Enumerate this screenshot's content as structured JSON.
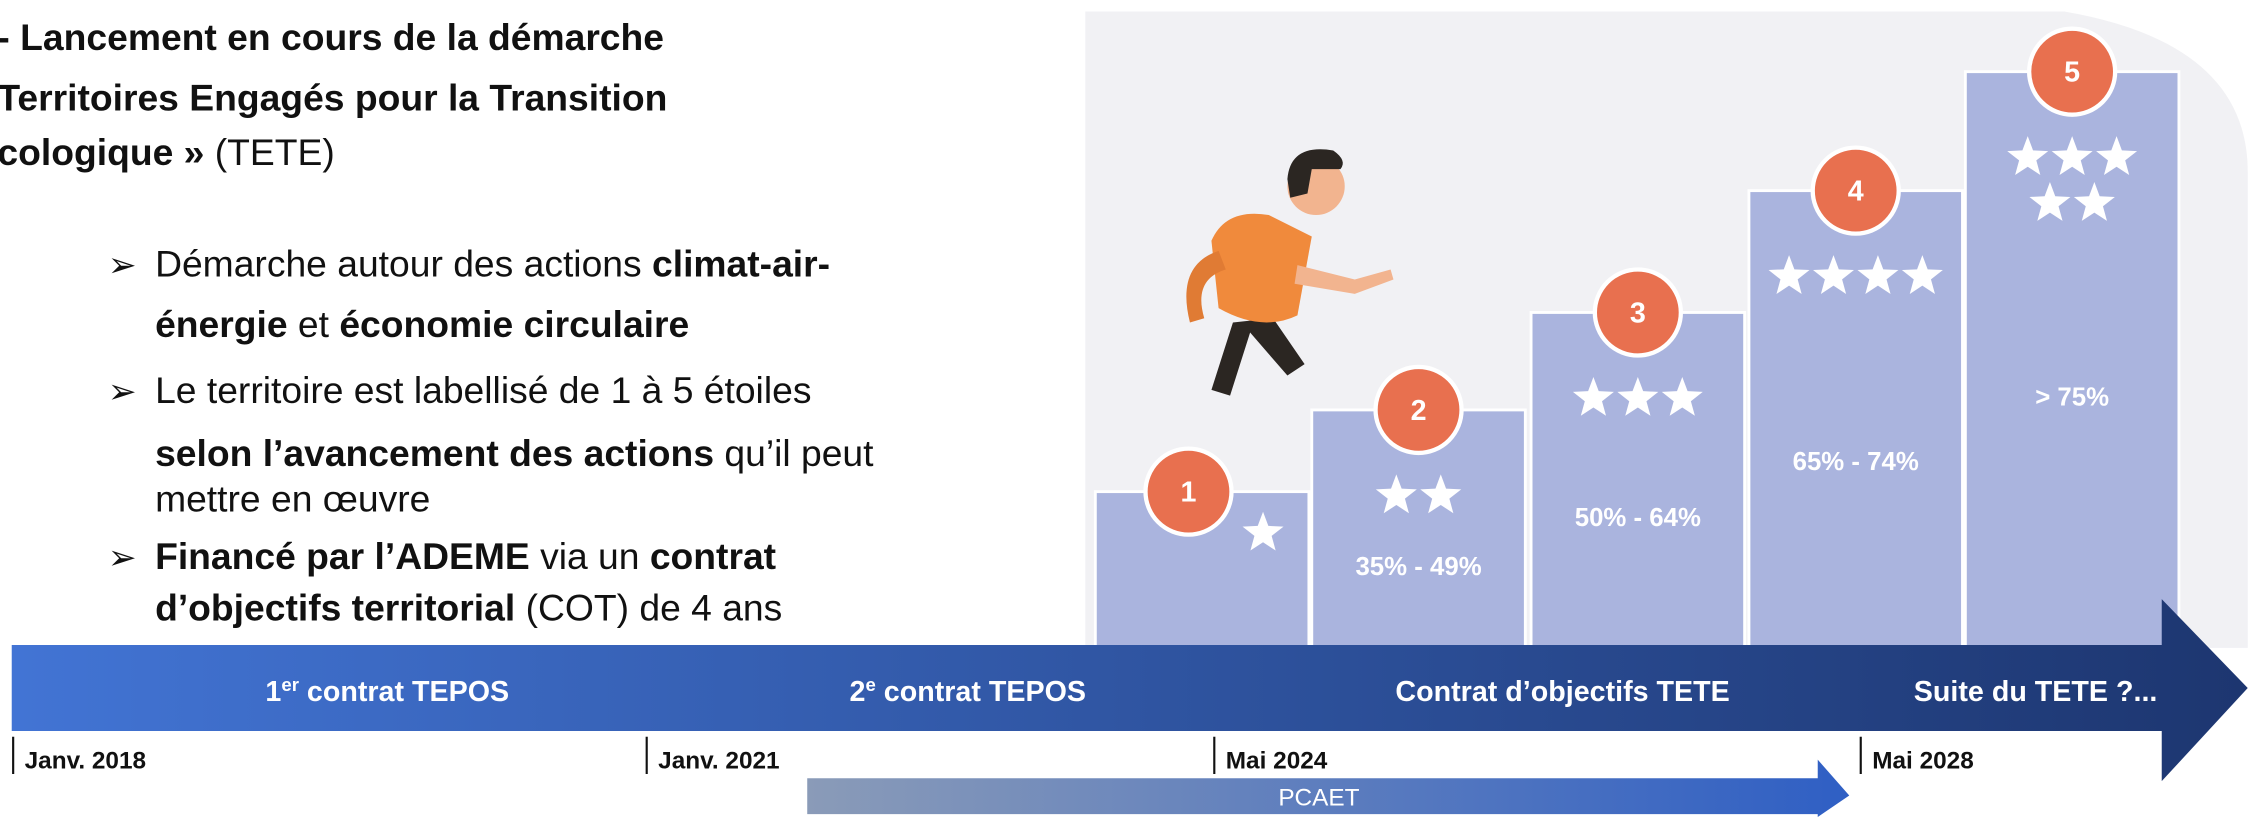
{
  "heading": {
    "lines": [
      [
        {
          "text": "- Lancement en cours de la démarche",
          "bold": true
        }
      ],
      [
        {
          "text": "Territoires Engagés pour la Transition",
          "bold": true
        }
      ],
      [
        {
          "text": "cologique »",
          "bold": true
        },
        {
          "text": " (TETE)",
          "bold": false
        }
      ]
    ]
  },
  "bullets": [
    {
      "lines": [
        [
          {
            "text": "Démarche autour des actions ",
            "bold": false
          },
          {
            "text": "climat-air-",
            "bold": true
          }
        ],
        [
          {
            "text": "énergie",
            "bold": true
          },
          {
            "text": " et ",
            "bold": false
          },
          {
            "text": "économie circulaire",
            "bold": true
          }
        ]
      ]
    },
    {
      "lines": [
        [
          {
            "text": "Le territoire est labellisé de 1 à 5 étoiles",
            "bold": false
          }
        ],
        [
          {
            "text": "selon l’avancement des actions",
            "bold": true
          },
          {
            "text": " qu’il peut",
            "bold": false
          }
        ],
        [
          {
            "text": "mettre en œuvre",
            "bold": false
          }
        ]
      ]
    },
    {
      "lines": [
        [
          {
            "text": "Financé par l’ADEME",
            "bold": true
          },
          {
            "text": " via un ",
            "bold": false
          },
          {
            "text": "contrat",
            "bold": true
          }
        ],
        [
          {
            "text": "d’objectifs territorial",
            "bold": true
          },
          {
            "text": " (COT) de 4 ans",
            "bold": false
          }
        ]
      ]
    }
  ],
  "steps": [
    {
      "number": 1,
      "stars": 1
    },
    {
      "number": 2,
      "stars": 2,
      "range": "35% - 49%"
    },
    {
      "number": 3,
      "stars": 3,
      "range": "50% - 64%"
    },
    {
      "number": 4,
      "stars": 4,
      "range": "65% - 74%"
    },
    {
      "number": 5,
      "stars": 5,
      "range": "> 75%"
    }
  ],
  "timeline": {
    "phases": [
      [
        {
          "text": "1"
        },
        {
          "text": "er",
          "sup": true
        },
        {
          "text": " contrat TEPOS"
        }
      ],
      [
        {
          "text": "2"
        },
        {
          "text": "e",
          "sup": true
        },
        {
          "text": " contrat TEPOS"
        }
      ],
      [
        {
          "text": "Contrat d’objectifs TETE"
        }
      ],
      [
        {
          "text": "Suite du TETE ?..."
        }
      ]
    ],
    "dates": [
      "Janv. 2018",
      "Janv. 2021",
      "Mai 2024",
      "Mai 2028"
    ],
    "pcaet": "PCAET"
  }
}
